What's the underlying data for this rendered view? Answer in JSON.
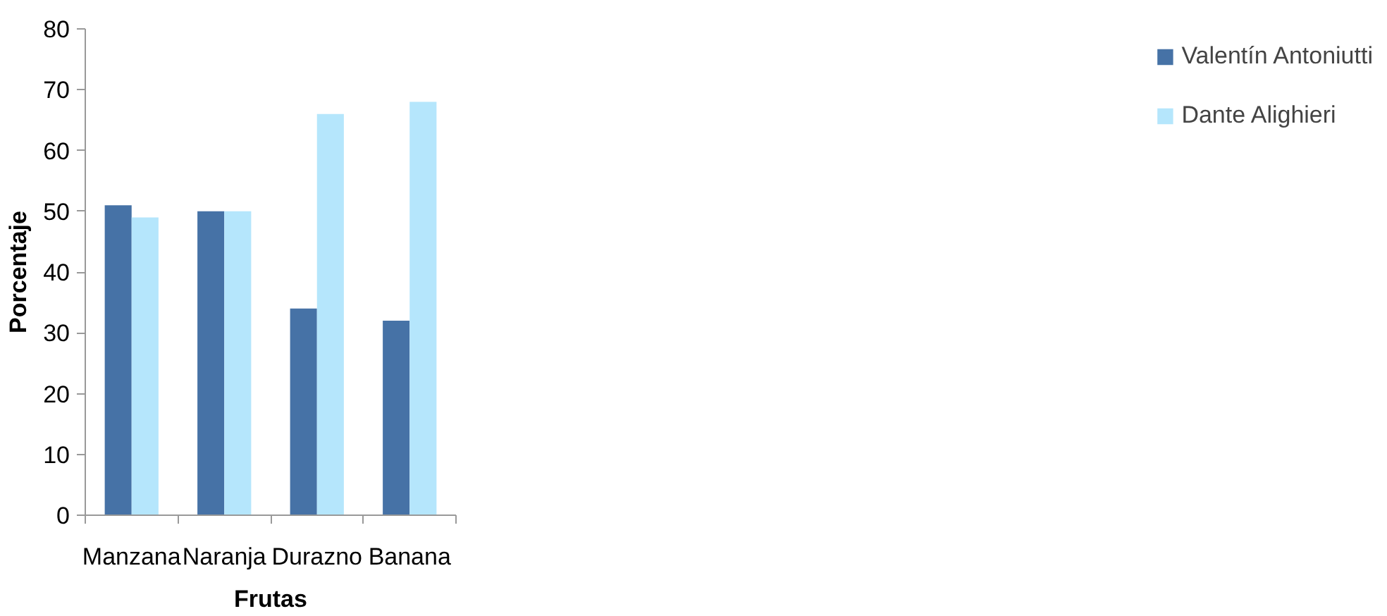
{
  "chart_data": {
    "type": "bar",
    "xlabel": "Frutas",
    "ylabel": "Porcentaje",
    "categories": [
      "Manzana",
      "Naranja",
      "Durazno",
      "Banana"
    ],
    "series": [
      {
        "name": "Valentín Antoniutti",
        "color": "#4672a6",
        "values": [
          51,
          50,
          34,
          32
        ]
      },
      {
        "name": "Dante Alighieri",
        "color": "#b5e6fc",
        "values": [
          49,
          50,
          66,
          68
        ]
      }
    ],
    "ylim": [
      0,
      80
    ],
    "yticks": [
      0,
      10,
      20,
      30,
      40,
      50,
      60,
      70,
      80
    ],
    "legend": "right"
  }
}
